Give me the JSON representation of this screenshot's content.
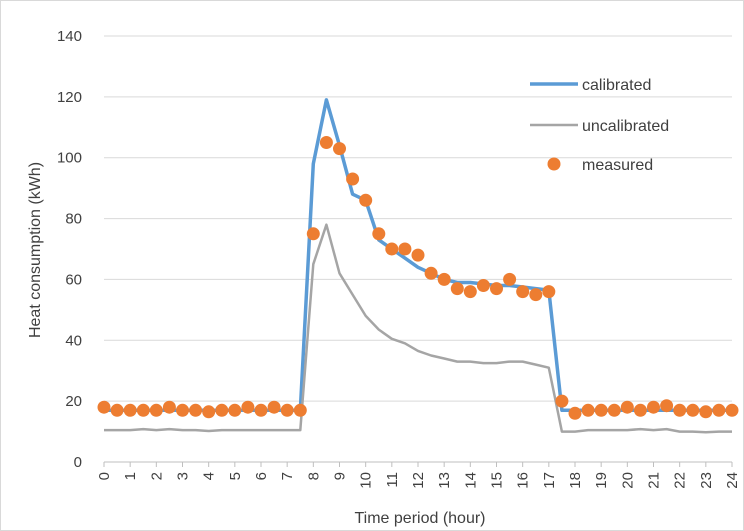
{
  "chart_data": {
    "type": "line",
    "xlabel": "Time period (hour)",
    "ylabel": "Heat consumption (kWh)",
    "xlim": [
      0,
      24
    ],
    "ylim": [
      0,
      140
    ],
    "x_ticks": [
      "0",
      "1",
      "2",
      "3",
      "4",
      "5",
      "6",
      "7",
      "8",
      "9",
      "10",
      "11",
      "12",
      "13",
      "14",
      "15",
      "16",
      "17",
      "18",
      "19",
      "20",
      "21",
      "22",
      "23",
      "24"
    ],
    "y_ticks": [
      "0",
      "20",
      "40",
      "60",
      "80",
      "100",
      "120",
      "140"
    ],
    "grid": "horizontal",
    "legend_position": "top-right",
    "series": [
      {
        "name": "calibrated",
        "type": "line",
        "color": "#5b9bd5",
        "x": [
          0,
          0.5,
          1,
          1.5,
          2,
          2.5,
          3,
          3.5,
          4,
          4.5,
          5,
          5.5,
          6,
          6.5,
          7,
          7.5,
          8,
          8.5,
          9,
          9.5,
          10,
          10.5,
          11,
          11.5,
          12,
          12.5,
          13,
          13.5,
          14,
          14.5,
          15,
          15.5,
          16,
          16.5,
          17,
          17.5,
          18,
          18.5,
          19,
          19.5,
          20,
          20.5,
          21,
          21.5,
          22,
          22.5,
          23,
          23.5,
          24
        ],
        "values": [
          17,
          17,
          17,
          17,
          17,
          17,
          17,
          17,
          17,
          17,
          17,
          17,
          17,
          17,
          17,
          17,
          98,
          119,
          104,
          88,
          86,
          73,
          70,
          67,
          64,
          62,
          60,
          59,
          59,
          58.5,
          58,
          58,
          57.5,
          57,
          56.5,
          17,
          17,
          17,
          17,
          17,
          17,
          17,
          17,
          17,
          17,
          17,
          17,
          17,
          17
        ]
      },
      {
        "name": "uncalibrated",
        "type": "line",
        "color": "#a5a5a5",
        "x": [
          0,
          0.5,
          1,
          1.5,
          2,
          2.5,
          3,
          3.5,
          4,
          4.5,
          5,
          5.5,
          6,
          6.5,
          7,
          7.5,
          8,
          8.5,
          9,
          9.5,
          10,
          10.5,
          11,
          11.5,
          12,
          12.5,
          13,
          13.5,
          14,
          14.5,
          15,
          15.5,
          16,
          16.5,
          17,
          17.5,
          18,
          18.5,
          19,
          19.5,
          20,
          20.5,
          21,
          21.5,
          22,
          22.5,
          23,
          23.5,
          24
        ],
        "values": [
          10.5,
          10.5,
          10.5,
          10.8,
          10.5,
          10.8,
          10.5,
          10.5,
          10.2,
          10.5,
          10.5,
          10.5,
          10.5,
          10.5,
          10.5,
          10.5,
          65,
          78,
          62,
          55,
          48,
          43.5,
          40.5,
          39,
          36.5,
          35,
          34,
          33,
          33,
          32.5,
          32.5,
          33,
          33,
          32,
          31,
          10,
          10,
          10.5,
          10.5,
          10.5,
          10.5,
          10.8,
          10.5,
          10.8,
          10,
          10,
          9.8,
          10,
          10
        ]
      },
      {
        "name": "measured",
        "type": "scatter",
        "color": "#ed7d31",
        "x": [
          0,
          0.5,
          1,
          1.5,
          2,
          2.5,
          3,
          3.5,
          4,
          4.5,
          5,
          5.5,
          6,
          6.5,
          7,
          7.5,
          8,
          8.5,
          9,
          9.5,
          10,
          10.5,
          11,
          11.5,
          12,
          12.5,
          13,
          13.5,
          14,
          14.5,
          15,
          15.5,
          16,
          16.5,
          17,
          17.5,
          18,
          18.5,
          19,
          19.5,
          20,
          20.5,
          21,
          21.5,
          22,
          22.5,
          23,
          23.5,
          24
        ],
        "values": [
          18,
          17,
          17,
          17,
          17,
          18,
          17,
          17,
          16.5,
          17,
          17,
          18,
          17,
          18,
          17,
          17,
          75,
          105,
          103,
          93,
          86,
          75,
          70,
          70,
          68,
          62,
          60,
          57,
          56,
          58,
          57,
          60,
          56,
          55,
          56,
          20,
          16,
          17,
          17,
          17,
          18,
          17,
          18,
          18.5,
          17,
          17,
          16.5,
          17,
          17
        ]
      }
    ]
  }
}
